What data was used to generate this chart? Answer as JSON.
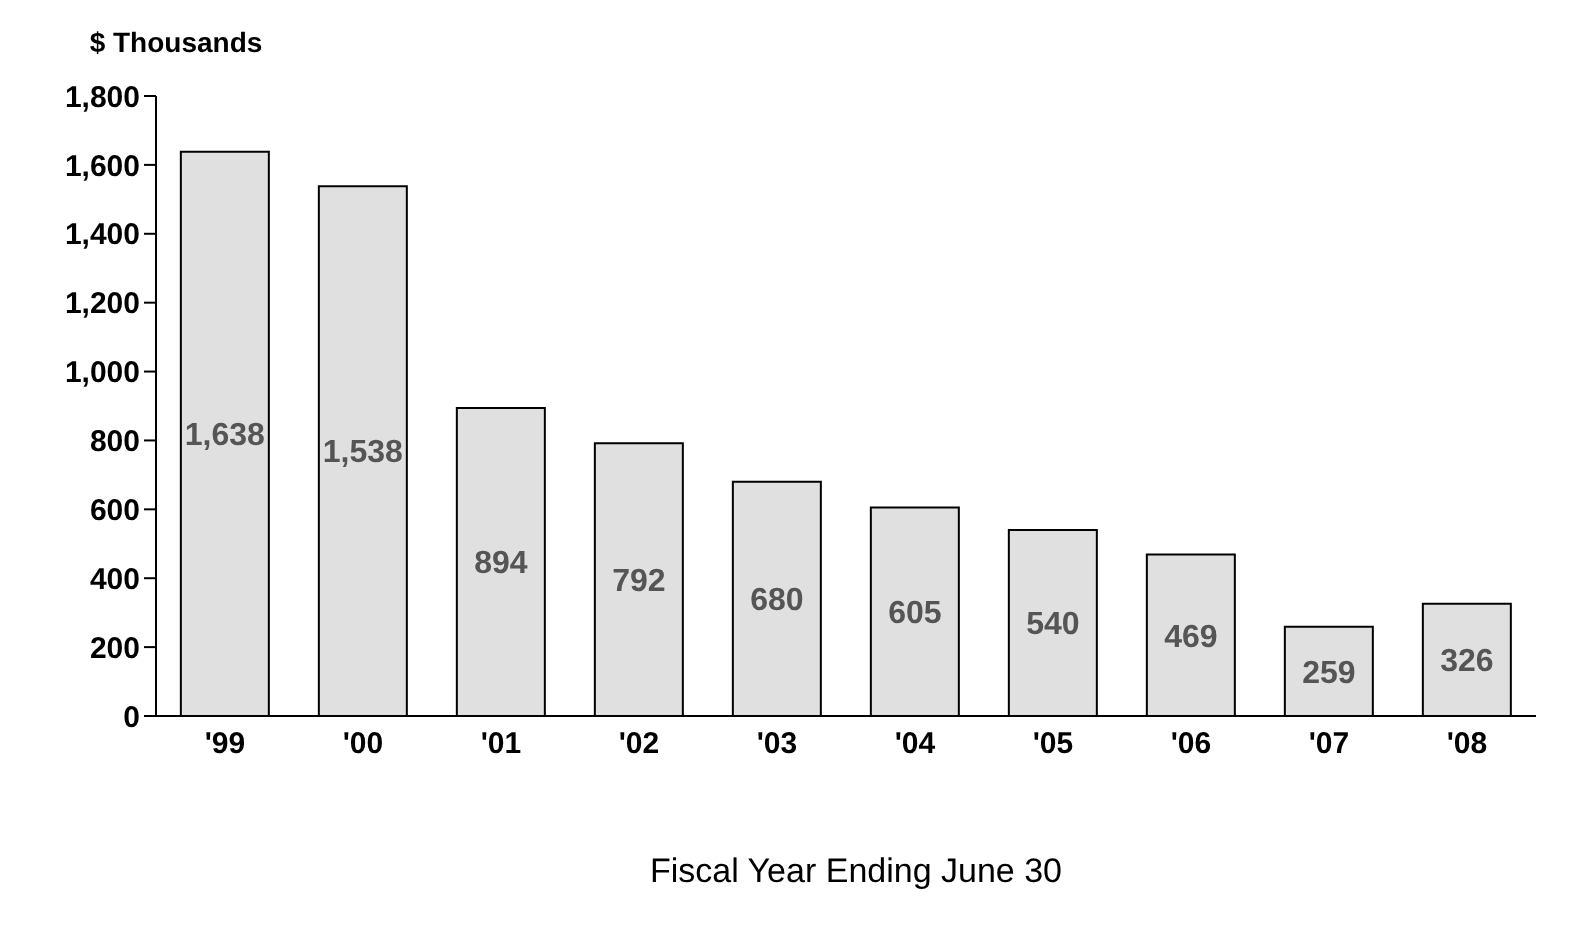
{
  "chart_data": {
    "type": "bar",
    "ylabel": "$ Thousands",
    "xlabel": "Fiscal Year Ending June 30",
    "categories": [
      "'99",
      "'00",
      "'01",
      "'02",
      "'03",
      "'04",
      "'05",
      "'06",
      "'07",
      "'08"
    ],
    "values": [
      1638,
      1538,
      894,
      792,
      680,
      605,
      540,
      469,
      259,
      326
    ],
    "value_labels": [
      "1,638",
      "1,538",
      "894",
      "792",
      "680",
      "605",
      "540",
      "469",
      "259",
      "326"
    ],
    "color": "#e0e0e0",
    "ylim": [
      0,
      1800
    ],
    "yticks": [
      0,
      200,
      400,
      600,
      800,
      {
        "value": 1000,
        "label": "1,000"
      },
      {
        "value": 1200,
        "label": "1,200"
      },
      {
        "value": 1400,
        "label": "1,400"
      },
      {
        "value": 1600,
        "label": "1,600"
      },
      {
        "value": 1800,
        "label": "1,800"
      }
    ],
    "grid": false,
    "legend": false
  }
}
